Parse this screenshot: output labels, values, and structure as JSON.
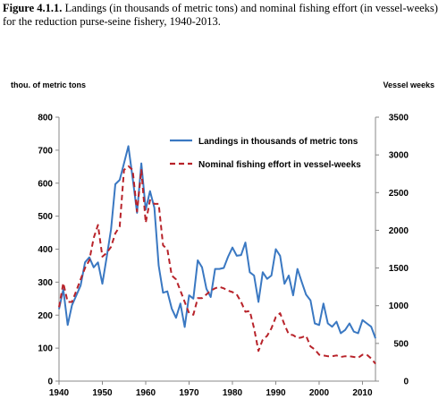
{
  "figure": {
    "label": "Figure 4.1.1.",
    "caption": "Landings (in thousands of metric tons) and nominal fishing effort (in vessel-weeks) for the reduction purse-seine fishery, 1940-2013."
  },
  "chart_data": {
    "type": "line",
    "left_axis_title": "thou. of metric tons",
    "right_axis_title": "Vessel weeks",
    "xlim": [
      1940,
      2013
    ],
    "ylim_left": [
      0,
      800
    ],
    "ylim_right": [
      0,
      3500
    ],
    "x_ticks": [
      "1940",
      "1950",
      "1960",
      "1970",
      "1980",
      "1990",
      "2000",
      "2010"
    ],
    "y_ticks_left": [
      "0",
      "100",
      "200",
      "300",
      "400",
      "500",
      "600",
      "700",
      "800"
    ],
    "y_ticks_right": [
      "0",
      "500",
      "1000",
      "1500",
      "2000",
      "2500",
      "3000",
      "3500"
    ],
    "grid": false,
    "legend_position": "top-right",
    "series": [
      {
        "name": "Landings in thousands of metric tons",
        "axis": "left",
        "color": "#3a78c2",
        "dash": "solid",
        "x": [
          1940,
          1941,
          1942,
          1943,
          1944,
          1945,
          1946,
          1947,
          1948,
          1949,
          1950,
          1951,
          1952,
          1953,
          1954,
          1955,
          1956,
          1957,
          1958,
          1959,
          1960,
          1961,
          1962,
          1963,
          1964,
          1965,
          1966,
          1967,
          1968,
          1969,
          1970,
          1971,
          1972,
          1973,
          1974,
          1975,
          1976,
          1977,
          1978,
          1979,
          1980,
          1981,
          1982,
          1983,
          1984,
          1985,
          1986,
          1987,
          1988,
          1989,
          1990,
          1991,
          1992,
          1993,
          1994,
          1995,
          1996,
          1997,
          1998,
          1999,
          2000,
          2001,
          2002,
          2003,
          2004,
          2005,
          2006,
          2007,
          2008,
          2009,
          2010,
          2011,
          2012,
          2013
        ],
        "y": [
          218,
          278,
          170,
          230,
          260,
          290,
          360,
          375,
          345,
          360,
          295,
          375,
          460,
          597,
          610,
          660,
          712,
          615,
          510,
          660,
          520,
          576,
          525,
          350,
          268,
          272,
          220,
          192,
          235,
          164,
          260,
          250,
          366,
          345,
          280,
          255,
          340,
          340,
          343,
          377,
          405,
          380,
          382,
          420,
          330,
          320,
          240,
          330,
          310,
          320,
          400,
          380,
          295,
          320,
          260,
          340,
          300,
          262,
          245,
          175,
          170,
          235,
          175,
          165,
          180,
          145,
          155,
          175,
          150,
          145,
          185,
          175,
          165,
          130
        ]
      },
      {
        "name": "Nominal fishing effort in vessel-weeks",
        "axis": "right",
        "color": "#b8232a",
        "dash": "dashed",
        "x": [
          1940,
          1941,
          1942,
          1943,
          1944,
          1945,
          1946,
          1947,
          1948,
          1949,
          1950,
          1951,
          1952,
          1953,
          1954,
          1955,
          1956,
          1957,
          1958,
          1959,
          1960,
          1961,
          1962,
          1963,
          1964,
          1965,
          1966,
          1967,
          1968,
          1969,
          1970,
          1971,
          1972,
          1973,
          1974,
          1975,
          1976,
          1977,
          1978,
          1979,
          1980,
          1981,
          1982,
          1983,
          1984,
          1985,
          1986,
          1987,
          1988,
          1989,
          1990,
          1991,
          1992,
          1993,
          1994,
          1995,
          1996,
          1997,
          1998,
          1999,
          2000,
          2001,
          2002,
          2003,
          2004,
          2005,
          2006,
          2007,
          2008,
          2009,
          2010,
          2011,
          2012,
          2013
        ],
        "y": [
          980,
          1300,
          1050,
          1050,
          1200,
          1350,
          1500,
          1600,
          1900,
          2070,
          1650,
          1700,
          1780,
          1960,
          2050,
          2800,
          2850,
          2800,
          2250,
          2800,
          2100,
          2400,
          2350,
          2350,
          1800,
          1750,
          1400,
          1350,
          1200,
          1050,
          900,
          880,
          1100,
          1100,
          1150,
          1200,
          1230,
          1250,
          1230,
          1200,
          1180,
          1150,
          1050,
          920,
          930,
          700,
          400,
          550,
          600,
          700,
          850,
          900,
          750,
          620,
          610,
          570,
          580,
          600,
          460,
          420,
          350,
          340,
          330,
          330,
          340,
          320,
          330,
          330,
          320,
          310,
          350,
          350,
          300,
          230
        ]
      }
    ]
  }
}
